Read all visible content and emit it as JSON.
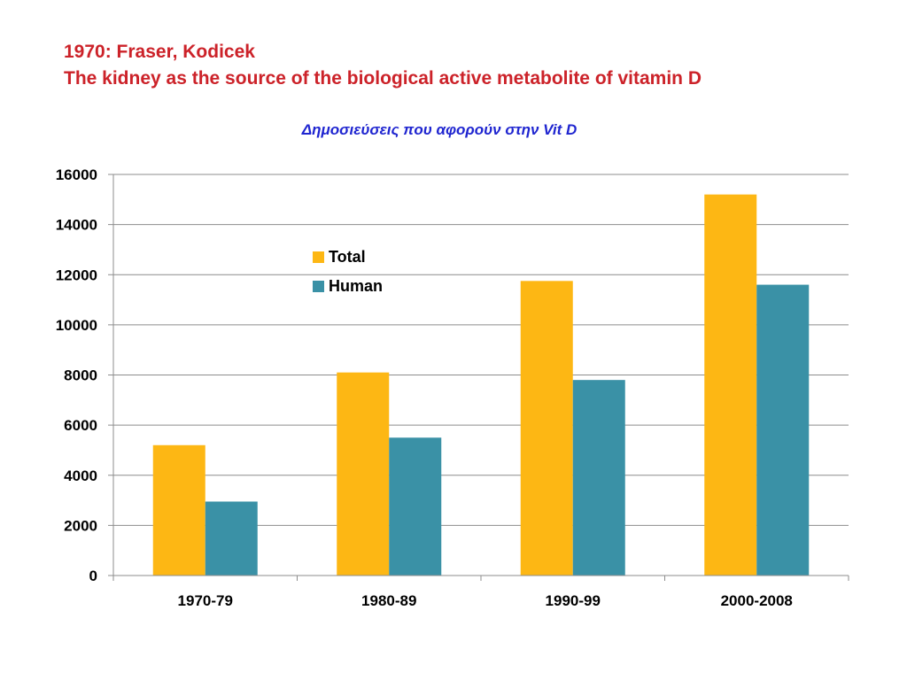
{
  "slide": {
    "title_line1": "1970: Fraser, Kodicek",
    "title_line2": "The kidney as the source of the biological active metabolite of vitamin D"
  },
  "chart_data": {
    "type": "bar",
    "title": "Δημοσιεύσεις που αφορούν στην Vit D",
    "categories": [
      "1970-79",
      "1980-89",
      "1990-99",
      "2000-2008"
    ],
    "series": [
      {
        "name": "Total",
        "color": "#fdb714",
        "values": [
          5200,
          8100,
          11750,
          15200
        ]
      },
      {
        "name": "Human",
        "color": "#3a91a6",
        "values": [
          2950,
          5500,
          7800,
          11600
        ]
      }
    ],
    "ylim": [
      0,
      16000
    ],
    "yticks": [
      0,
      2000,
      4000,
      6000,
      8000,
      10000,
      12000,
      14000,
      16000
    ],
    "grid": true,
    "legend_position": "top-center",
    "xlabel": "",
    "ylabel": ""
  }
}
